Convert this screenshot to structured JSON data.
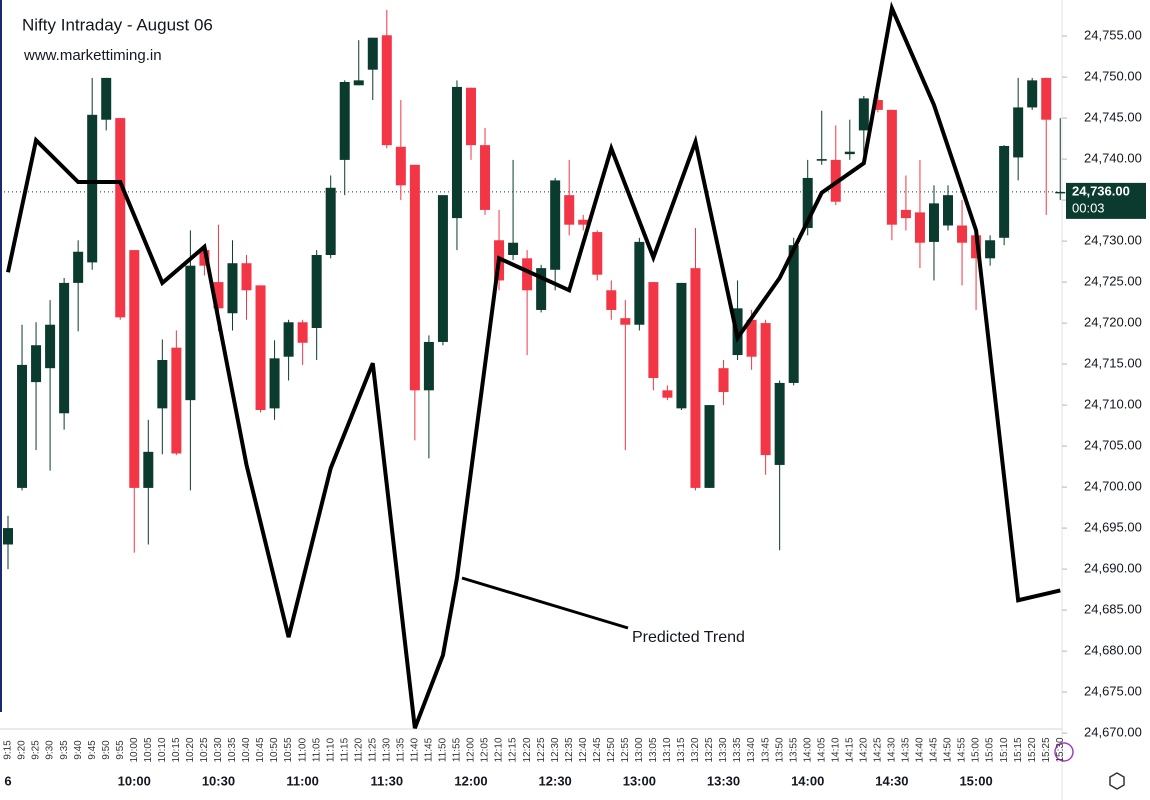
{
  "chart_data": {
    "type": "candlestick",
    "title": "Nifty Intraday - August 06",
    "subtitle": "www.markettiming.in",
    "categories": [
      "9:15",
      "9:20",
      "9:25",
      "9:30",
      "9:35",
      "9:40",
      "9:45",
      "9:50",
      "9:55",
      "10:00",
      "10:05",
      "10:10",
      "10:15",
      "10:20",
      "10:25",
      "10:30",
      "10:35",
      "10:40",
      "10:45",
      "10:50",
      "10:55",
      "11:00",
      "11:05",
      "11:10",
      "11:15",
      "11:20",
      "11:25",
      "11:30",
      "11:35",
      "11:40",
      "11:45",
      "11:50",
      "11:55",
      "12:00",
      "12:05",
      "12:10",
      "12:15",
      "12:20",
      "12:25",
      "12:30",
      "12:35",
      "12:40",
      "12:45",
      "12:50",
      "12:55",
      "13:00",
      "13:05",
      "13:10",
      "13:15",
      "13:20",
      "13:25",
      "13:30",
      "13:35",
      "13:40",
      "13:45",
      "13:50",
      "13:55",
      "14:00",
      "14:05",
      "14:10",
      "14:15",
      "14:20",
      "14:25",
      "14:30",
      "14:35",
      "14:40",
      "14:45",
      "14:50",
      "14:55",
      "15:00",
      "15:05",
      "15:10",
      "15:15",
      "15:20",
      "15:25",
      "15:30"
    ],
    "x_major_labels": [
      "6",
      "10:00",
      "10:30",
      "11:00",
      "11:30",
      "12:00",
      "12:30",
      "13:00",
      "13:30",
      "14:00",
      "14:30",
      "15:00"
    ],
    "open": [
      24693,
      24699.9,
      24712.8,
      24714.5,
      24709,
      24724.9,
      24727.4,
      24744.8,
      24745,
      24728.9,
      24699.9,
      24709.6,
      24717,
      24710.6,
      24728.9,
      24725,
      24721.2,
      24727.3,
      24724.6,
      24709.6,
      24715.9,
      24720.1,
      24719.4,
      24728.3,
      24739.9,
      24749,
      24750.9,
      24755.1,
      24741.5,
      24739.3,
      24711.8,
      24717.7,
      24732.8,
      24748.7,
      24741.7,
      24730.1,
      24728.3,
      24727.9,
      24721.6,
      24726.5,
      24735.6,
      24732.6,
      24731.1,
      24724,
      24720.6,
      24719.8,
      24725,
      24711.8,
      24709.6,
      24726.7,
      24699.9,
      24714.5,
      24716.1,
      24720.4,
      24720,
      24702.7,
      24712.7,
      24731.6,
      24739.8,
      24739.9,
      24740.6,
      24743.5,
      24747.2,
      24746,
      24733.8,
      24733.5,
      24729.9,
      24731.9,
      24731.9,
      24730.7,
      24727.9,
      24730.4,
      24740.2,
      24746.3,
      24749.9,
      24736
    ],
    "high": [
      24696.5,
      24719.8,
      24720.1,
      24722.8,
      24725.5,
      24730.1,
      24749.9,
      24749.9,
      24745,
      24728.9,
      24708.2,
      24718,
      24719.1,
      24731.3,
      24729.5,
      24732,
      24730.1,
      24728.3,
      24724.6,
      24717.9,
      24720.4,
      24720.4,
      24728.9,
      24738,
      24749.6,
      24754.5,
      24754.8,
      24758.2,
      24747.2,
      24739.3,
      24718.5,
      24735.6,
      24749.6,
      24748.7,
      24743.8,
      24733.8,
      24739.9,
      24728.9,
      24727.1,
      24737.7,
      24739.9,
      24733.2,
      24731.3,
      24725.2,
      24722.8,
      24730.4,
      24725,
      24712.4,
      24724.9,
      24731.6,
      24710,
      24715.5,
      24725.2,
      24721.6,
      24720.4,
      24713,
      24730.4,
      24739.9,
      24745.9,
      24744.1,
      24744.8,
      24747.7,
      24747.8,
      24746,
      24738,
      24739.9,
      24736.8,
      24736.8,
      24735,
      24731.3,
      24730.7,
      24741.7,
      24749.9,
      24749.9,
      24749.9,
      24745
    ],
    "low": [
      24690,
      24699.6,
      24704.5,
      24702,
      24707,
      24719,
      24726.5,
      24743.5,
      24720.4,
      24692,
      24693,
      24704,
      24703.9,
      24699.6,
      24725.8,
      24719,
      24719.1,
      24720.4,
      24709.1,
      24708.2,
      24713,
      24714.9,
      24715.5,
      24727.9,
      24735.6,
      24749,
      24747.2,
      24741.3,
      24735,
      24705.7,
      24703.5,
      24717.3,
      24728.9,
      24739.9,
      24733.2,
      24724,
      24727.7,
      24716.1,
      24721.3,
      24724,
      24730.7,
      24731.3,
      24725.2,
      24720.4,
      24704.5,
      24719.1,
      24711.8,
      24710.6,
      24709.4,
      24699.6,
      24699.9,
      24710,
      24715.5,
      24714.3,
      24701.5,
      24692.3,
      24712.4,
      24730.7,
      24739.3,
      24734.4,
      24739.9,
      24740.5,
      24745.7,
      24730.1,
      24731.3,
      24726.7,
      24725.2,
      24731.3,
      24724.6,
      24721.6,
      24727,
      24729.5,
      24737.4,
      24746,
      24733.2,
      24735
    ],
    "close": [
      24695,
      24714.9,
      24717.3,
      24719.8,
      24724.9,
      24728.7,
      24745.4,
      24749.9,
      24720.7,
      24699.9,
      24704.3,
      24715.5,
      24704.1,
      24727,
      24727,
      24721.8,
      24727.3,
      24724,
      24709.4,
      24715.7,
      24720.1,
      24717.6,
      24728.3,
      24736.5,
      24749.4,
      24749.6,
      24754.8,
      24741.7,
      24736.8,
      24711.8,
      24717.7,
      24735.6,
      24748.8,
      24741.7,
      24733.8,
      24725.2,
      24729.8,
      24724,
      24726.7,
      24737.4,
      24732,
      24732,
      24725.9,
      24721.6,
      24719.8,
      24729.9,
      24713.3,
      24710.9,
      24724.9,
      24699.9,
      24710,
      24711.6,
      24721.8,
      24715.9,
      24703.9,
      24712.7,
      24729.5,
      24737.7,
      24740,
      24734.8,
      24740.9,
      24747.4,
      24746,
      24732,
      24732.8,
      24729.8,
      24734.6,
      24735.6,
      24729.8,
      24727.9,
      24730.1,
      24741.6,
      24746.3,
      24749.6,
      24744.8,
      24736
    ],
    "up_color": "#0b3b2e",
    "down_color": "#f23645",
    "trend": {
      "name": "Predicted Trend",
      "color": "#000000",
      "x": [
        "9:15",
        "9:25",
        "9:40",
        "9:55",
        "10:10",
        "10:25",
        "10:40",
        "10:55",
        "11:10",
        "11:25",
        "11:40",
        "11:50",
        "11:55",
        "12:10",
        "12:35",
        "12:50",
        "13:05",
        "13:20",
        "13:35",
        "13:50",
        "14:05",
        "14:20",
        "14:30",
        "14:45",
        "15:00",
        "15:15",
        "15:30"
      ],
      "values": [
        24726.2,
        24742.3,
        24737.2,
        24737.2,
        24724.9,
        24729.3,
        24702.7,
        24681.7,
        24702.3,
        24715.1,
        24670.6,
        24679.5,
        24688.9,
        24727.9,
        24724,
        24741.3,
        24728,
        24742.1,
        24718.2,
        24725.5,
        24735.9,
        24739.5,
        24758.4,
        24746.6,
        24731.3,
        24686.2,
        24687.4
      ]
    },
    "annotation": "Predicted Trend",
    "last_price": {
      "value": 24736,
      "label": "24,736.00"
    },
    "countdown": "00:03",
    "ylim": [
      24669.4,
      24759.4
    ],
    "yticks": [
      {
        "value": 24670,
        "label": "24,670.00"
      },
      {
        "value": 24675,
        "label": "24,675.00"
      },
      {
        "value": 24680,
        "label": "24,680.00"
      },
      {
        "value": 24685,
        "label": "24,685.00"
      },
      {
        "value": 24690,
        "label": "24,690.00"
      },
      {
        "value": 24695,
        "label": "24,695.00"
      },
      {
        "value": 24700,
        "label": "24,700.00"
      },
      {
        "value": 24705,
        "label": "24,705.00"
      },
      {
        "value": 24710,
        "label": "24,710.00"
      },
      {
        "value": 24715,
        "label": "24,715.00"
      },
      {
        "value": 24720,
        "label": "24,720.00"
      },
      {
        "value": 24725,
        "label": "24,725.00"
      },
      {
        "value": 24730,
        "label": "24,730.00"
      },
      {
        "value": 24735,
        "label": "24,735.00"
      },
      {
        "value": 24740,
        "label": "24,740.00"
      },
      {
        "value": 24745,
        "label": "24,745.00"
      },
      {
        "value": 24750,
        "label": "24,750.00"
      },
      {
        "value": 24755,
        "label": "24,755.00"
      }
    ],
    "grid": false
  }
}
